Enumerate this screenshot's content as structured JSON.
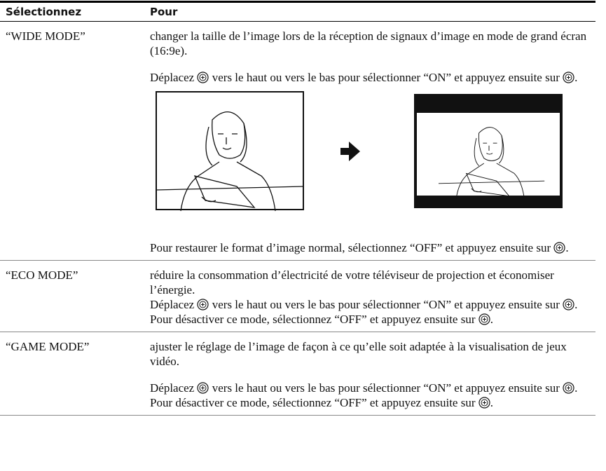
{
  "table": {
    "header": [
      "Sélectionnez",
      "Pour"
    ],
    "rows": [
      {
        "select": "“WIDE MODE”",
        "blocks": [
          [
            [
              "changer la taille de l’image lors de la réception de signaux d’image en mode de grand écran (16:9e)."
            ]
          ],
          [
            [
              "Déplacez ",
              " vers le haut ou vers le bas pour sélectionner “ON” et appuyez ensuite sur ",
              "."
            ]
          ],
          [
            [
              "Pour restaurer le format d’image normal, sélectionnez “OFF” et appuyez ensuite sur ",
              "."
            ]
          ]
        ]
      },
      {
        "select": "“ECO MODE”",
        "blocks": [
          [
            [
              "réduire la consommation d’électricité de votre téléviseur de projection et économiser l’énergie."
            ],
            [
              "Déplacez ",
              " vers le haut ou vers le bas pour sélectionner “ON” et appuyez ensuite sur ",
              "."
            ],
            [
              "Pour désactiver ce mode, sélectionnez “OFF” et appuyez ensuite sur ",
              "."
            ]
          ]
        ]
      },
      {
        "select": "“GAME MODE”",
        "blocks": [
          [
            [
              "ajuster le réglage de l’image de façon à ce qu’elle soit adaptée à la visualisation de jeux vidéo."
            ]
          ],
          [
            [
              "Déplacez ",
              " vers le haut ou vers le bas pour sélectionner “ON” et appuyez ensuite sur ",
              "."
            ],
            [
              "Pour désactiver ce mode, sélectionnez “OFF” et appuyez ensuite sur ",
              "."
            ]
          ]
        ]
      }
    ]
  }
}
